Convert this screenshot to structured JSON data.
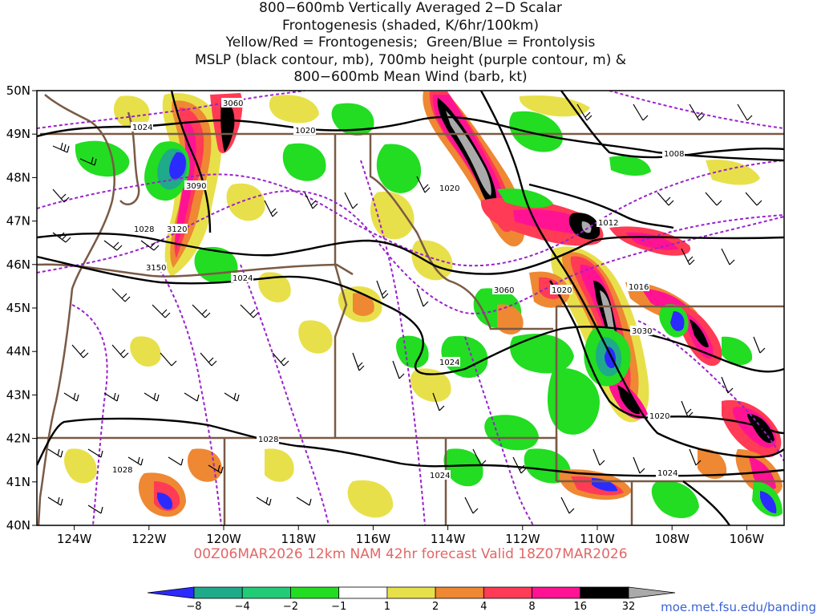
{
  "title_lines": [
    "800−600mb Vertically Averaged 2−D Scalar",
    "Frontogenesis (shaded, K/6hr/100km)",
    "Yellow/Red = Frontogenesis;  Green/Blue = Frontolysis",
    "MSLP (black contour, mb), 700mb height (purple contour, m) &",
    "800−600mb Mean Wind (barb, kt)"
  ],
  "lat_labels": [
    "50N",
    "49N",
    "48N",
    "47N",
    "46N",
    "45N",
    "44N",
    "43N",
    "42N",
    "41N",
    "40N"
  ],
  "lon_labels": [
    "124W",
    "122W",
    "120W",
    "118W",
    "116W",
    "114W",
    "112W",
    "110W",
    "108W",
    "106W"
  ],
  "valid_text": "00Z06MAR2026 12km NAM 42hr forecast Valid 18Z07MAR2026",
  "credit": "moe.met.fsu.edu/banding",
  "contour_labels": {
    "mslp": [
      "1024",
      "1020",
      "1008",
      "1020",
      "1012",
      "1028",
      "1024",
      "1020",
      "1016",
      "1024",
      "1020",
      "1028",
      "1024",
      "1028",
      "1024"
    ],
    "height": [
      "3060",
      "3090",
      "3120",
      "3150",
      "3060",
      "3030"
    ]
  },
  "legend": {
    "ticks": [
      "−8",
      "−4",
      "−2",
      "−1",
      "1",
      "2",
      "4",
      "8",
      "16",
      "32"
    ],
    "colors": [
      "#2b2bff",
      "#1faa8a",
      "#22cc77",
      "#22dd22",
      "#ffffff",
      "#e8e04a",
      "#ee8833",
      "#ff3b55",
      "#ff1393",
      "#000000",
      "#aaaaaa"
    ]
  },
  "map_style": {
    "mslp_color": "#000000",
    "height_color": "#9a22cc",
    "border_color": "#7a5a45"
  }
}
